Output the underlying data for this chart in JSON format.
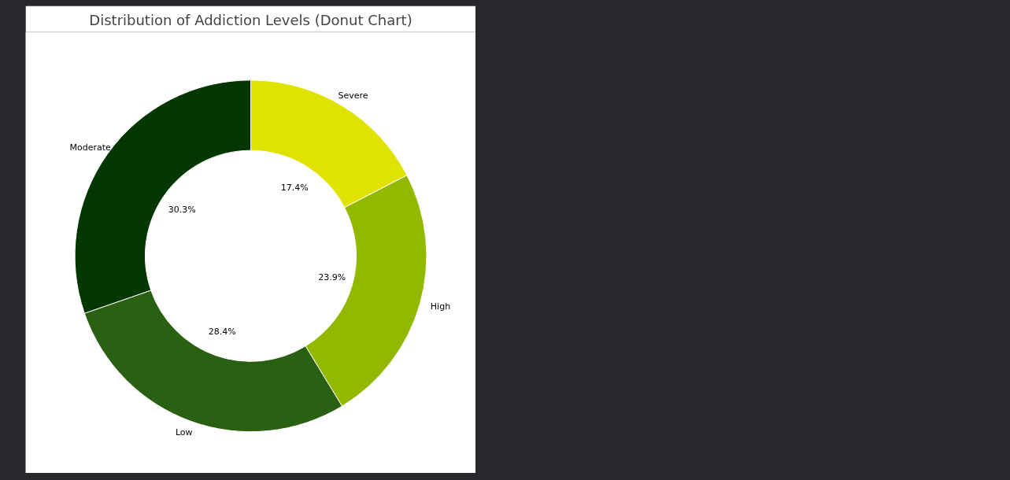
{
  "chart_data": {
    "type": "donut",
    "title": "Distribution of Addiction Levels (Donut Chart)",
    "categories": [
      "Moderate",
      "Low",
      "High",
      "Severe"
    ],
    "values": [
      30.3,
      28.4,
      23.9,
      17.4
    ],
    "value_labels": [
      "30.3%",
      "28.4%",
      "23.9%",
      "17.4%"
    ],
    "colors": [
      "#033700",
      "#2a6012",
      "#93b800",
      "#e0e300"
    ]
  }
}
